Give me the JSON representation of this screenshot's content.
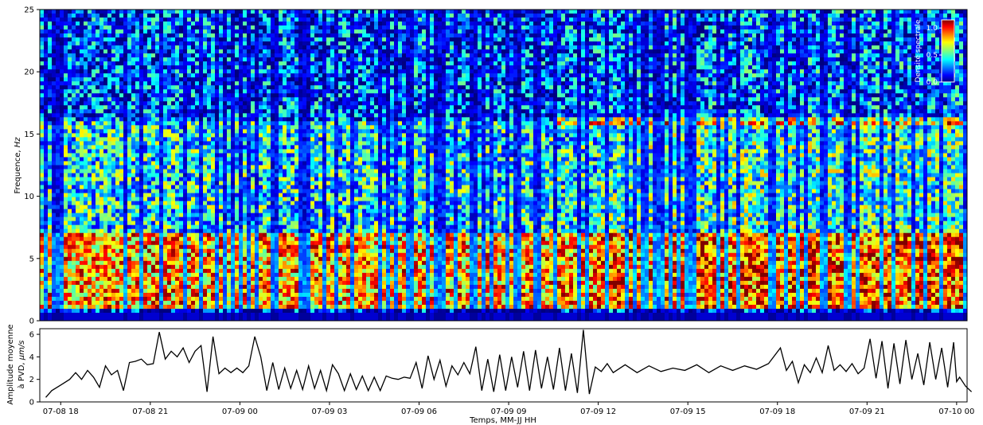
{
  "chart_data": [
    {
      "type": "heatmap",
      "title": "",
      "xlabel": "",
      "ylabel": "Frequence, ",
      "ylabel_unit": "Hz",
      "ylim": [
        0,
        25
      ],
      "yticks": [
        "0",
        "5",
        "10",
        "15",
        "20",
        "25"
      ],
      "colormap": "jet",
      "colorbar": {
        "label": "Densité spectrale",
        "range": [
          0.0,
          1.15
        ],
        "ticks": [
          "0.0",
          "0.5",
          "1.0"
        ],
        "placement": "top-right, inside plot"
      },
      "description_bands": [
        {
          "freq_range_hz": [
            1,
            7
          ],
          "level": "high"
        },
        {
          "freq_range_hz": [
            7,
            16
          ],
          "level": "medium"
        },
        {
          "freq_range_hz": [
            16,
            25
          ],
          "level": "low"
        }
      ]
    },
    {
      "type": "line",
      "title": "",
      "xlabel": "Temps, MM-JJ HH",
      "ylabel": "Amplitude moyenne",
      "ylabel2_prefix": "à PVD, ",
      "ylabel2_unit": "μm/s",
      "ylim": [
        0,
        6.5
      ],
      "yticks": [
        "0",
        "2",
        "4",
        "6"
      ],
      "xticks": [
        "07-08 18",
        "07-08 21",
        "07-09 00",
        "07-09 03",
        "07-09 06",
        "07-09 09",
        "07-09 12",
        "07-09 15",
        "07-09 18",
        "07-09 21",
        "07-10 00"
      ],
      "series": [
        {
          "color": "#000000",
          "x_hours_labels": "hours from 07-08 18",
          "points": [
            [
              -0.5,
              0.4
            ],
            [
              -0.3,
              1.0
            ],
            [
              0.0,
              1.5
            ],
            [
              0.3,
              2.0
            ],
            [
              0.5,
              2.6
            ],
            [
              0.7,
              2.0
            ],
            [
              0.9,
              2.8
            ],
            [
              1.1,
              2.2
            ],
            [
              1.3,
              1.3
            ],
            [
              1.5,
              3.2
            ],
            [
              1.7,
              2.4
            ],
            [
              1.9,
              2.8
            ],
            [
              2.1,
              1.0
            ],
            [
              2.3,
              3.5
            ],
            [
              2.5,
              3.6
            ],
            [
              2.7,
              3.8
            ],
            [
              2.9,
              3.3
            ],
            [
              3.1,
              3.4
            ],
            [
              3.3,
              6.2
            ],
            [
              3.5,
              3.8
            ],
            [
              3.7,
              4.5
            ],
            [
              3.9,
              4.0
            ],
            [
              4.1,
              4.8
            ],
            [
              4.3,
              3.5
            ],
            [
              4.5,
              4.5
            ],
            [
              4.7,
              5.0
            ],
            [
              4.9,
              0.9
            ],
            [
              5.1,
              5.8
            ],
            [
              5.3,
              2.5
            ],
            [
              5.5,
              3.0
            ],
            [
              5.7,
              2.6
            ],
            [
              5.9,
              3.0
            ],
            [
              6.1,
              2.6
            ],
            [
              6.3,
              3.2
            ],
            [
              6.5,
              5.8
            ],
            [
              6.7,
              4.0
            ],
            [
              6.9,
              1.0
            ],
            [
              7.1,
              3.5
            ],
            [
              7.3,
              1.1
            ],
            [
              7.5,
              3.0
            ],
            [
              7.7,
              1.2
            ],
            [
              7.9,
              2.8
            ],
            [
              8.1,
              1.1
            ],
            [
              8.3,
              3.2
            ],
            [
              8.5,
              1.2
            ],
            [
              8.7,
              2.8
            ],
            [
              8.9,
              1.0
            ],
            [
              9.1,
              3.3
            ],
            [
              9.3,
              2.5
            ],
            [
              9.5,
              1.0
            ],
            [
              9.7,
              2.5
            ],
            [
              9.9,
              1.1
            ],
            [
              10.1,
              2.3
            ],
            [
              10.3,
              1.0
            ],
            [
              10.5,
              2.2
            ],
            [
              10.7,
              1.0
            ],
            [
              10.9,
              2.3
            ],
            [
              11.1,
              2.1
            ],
            [
              11.3,
              2.0
            ],
            [
              11.5,
              2.2
            ],
            [
              11.7,
              2.1
            ],
            [
              11.9,
              3.5
            ],
            [
              12.1,
              1.2
            ],
            [
              12.3,
              4.1
            ],
            [
              12.5,
              2.0
            ],
            [
              12.7,
              3.7
            ],
            [
              12.9,
              1.4
            ],
            [
              13.1,
              3.2
            ],
            [
              13.3,
              2.4
            ],
            [
              13.5,
              3.5
            ],
            [
              13.7,
              2.5
            ],
            [
              13.9,
              4.9
            ],
            [
              14.1,
              1.0
            ],
            [
              14.3,
              3.8
            ],
            [
              14.5,
              0.9
            ],
            [
              14.7,
              4.2
            ],
            [
              14.9,
              1.0
            ],
            [
              15.1,
              4.0
            ],
            [
              15.3,
              1.3
            ],
            [
              15.5,
              4.5
            ],
            [
              15.7,
              1.0
            ],
            [
              15.9,
              4.6
            ],
            [
              16.1,
              1.2
            ],
            [
              16.3,
              4.0
            ],
            [
              16.5,
              1.1
            ],
            [
              16.7,
              4.8
            ],
            [
              16.9,
              1.0
            ],
            [
              17.1,
              4.3
            ],
            [
              17.3,
              0.8
            ],
            [
              17.5,
              6.4
            ],
            [
              17.7,
              0.7
            ],
            [
              17.9,
              3.1
            ],
            [
              18.1,
              2.7
            ],
            [
              18.3,
              3.4
            ],
            [
              18.5,
              2.6
            ],
            [
              18.9,
              3.3
            ],
            [
              19.3,
              2.6
            ],
            [
              19.7,
              3.2
            ],
            [
              20.1,
              2.7
            ],
            [
              20.5,
              3.0
            ],
            [
              20.9,
              2.8
            ],
            [
              21.3,
              3.3
            ],
            [
              21.7,
              2.6
            ],
            [
              22.1,
              3.2
            ],
            [
              22.5,
              2.8
            ],
            [
              22.9,
              3.2
            ],
            [
              23.3,
              2.9
            ],
            [
              23.7,
              3.4
            ],
            [
              24.1,
              4.8
            ],
            [
              24.3,
              2.8
            ],
            [
              24.5,
              3.6
            ],
            [
              24.7,
              1.7
            ],
            [
              24.9,
              3.3
            ],
            [
              25.1,
              2.6
            ],
            [
              25.3,
              3.9
            ],
            [
              25.5,
              2.6
            ],
            [
              25.7,
              5.0
            ],
            [
              25.9,
              2.8
            ],
            [
              26.1,
              3.3
            ],
            [
              26.3,
              2.7
            ],
            [
              26.5,
              3.4
            ],
            [
              26.7,
              2.5
            ],
            [
              26.9,
              3.0
            ],
            [
              27.1,
              5.6
            ],
            [
              27.3,
              2.1
            ],
            [
              27.5,
              5.4
            ],
            [
              27.7,
              1.2
            ],
            [
              27.9,
              5.2
            ],
            [
              28.1,
              1.6
            ],
            [
              28.3,
              5.5
            ],
            [
              28.5,
              2.0
            ],
            [
              28.7,
              4.3
            ],
            [
              28.9,
              1.5
            ],
            [
              29.1,
              5.3
            ],
            [
              29.3,
              2.0
            ],
            [
              29.5,
              4.8
            ],
            [
              29.7,
              1.3
            ],
            [
              29.9,
              5.3
            ],
            [
              30.0,
              1.8
            ],
            [
              30.1,
              2.2
            ],
            [
              30.3,
              1.4
            ],
            [
              30.5,
              0.9
            ]
          ]
        }
      ]
    }
  ]
}
